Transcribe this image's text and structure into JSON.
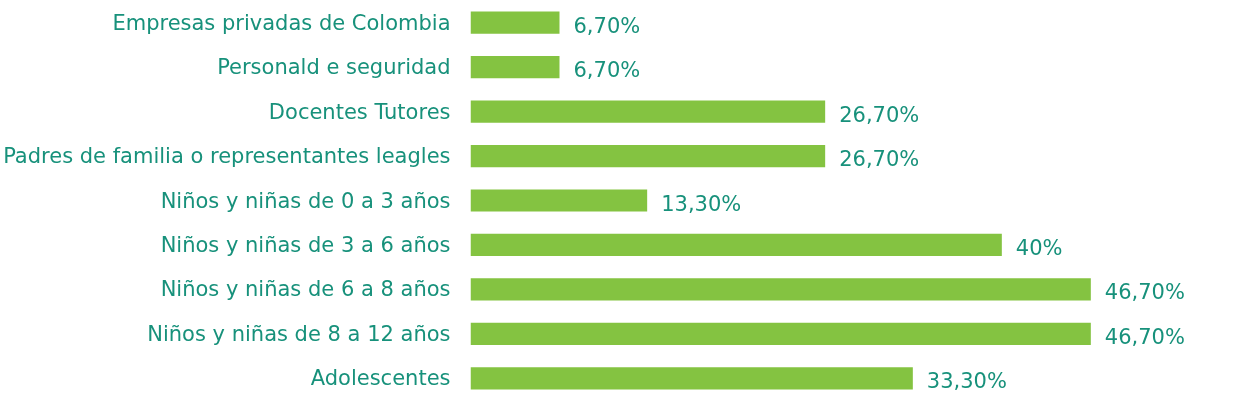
{
  "chart_data": {
    "type": "bar",
    "orientation": "horizontal",
    "categories": [
      "Empresas privadas de Colombia",
      "Personald e seguridad",
      "Docentes Tutores",
      "Padres de familia o representantes leagles",
      "Niños y niñas de 0 a 3 años",
      "Niños y niñas de 3 a 6 años",
      "Niños y niñas de 6 a 8 años",
      "Niños y niñas de 8 a 12 años",
      "Adolescentes"
    ],
    "values": [
      6.7,
      6.7,
      26.7,
      26.7,
      13.3,
      40,
      46.7,
      46.7,
      33.3
    ],
    "value_labels": [
      "6,70%",
      "6,70%",
      "26,70%",
      "26,70%",
      "13,30%",
      "40%",
      "46,70%",
      "46,70%",
      "33,30%"
    ],
    "color": "#84c341"
  }
}
